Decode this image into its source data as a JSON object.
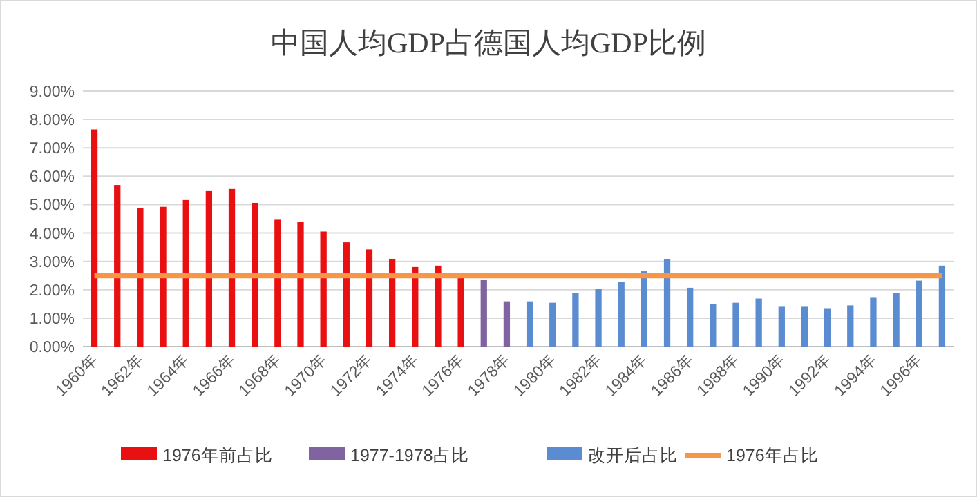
{
  "chart_data": {
    "type": "bar",
    "title": "中国人均GDP占德国人均GDP比例",
    "categories": [
      "1960年",
      null,
      "1962年",
      null,
      "1964年",
      null,
      "1966年",
      null,
      "1968年",
      null,
      "1970年",
      null,
      "1972年",
      null,
      "1974年",
      null,
      "1976年",
      null,
      "1978年",
      null,
      "1980年",
      null,
      "1982年",
      null,
      "1984年",
      null,
      "1986年",
      null,
      "1988年",
      null,
      "1990年",
      null,
      "1992年",
      null,
      "1994年",
      null,
      "1996年",
      null
    ],
    "series": [
      {
        "name": "1976年前占比",
        "color": "#e81010",
        "values": [
          7.65,
          5.69,
          4.87,
          4.92,
          5.16,
          5.5,
          5.55,
          5.06,
          4.49,
          4.39,
          4.05,
          3.67,
          3.42,
          3.09,
          2.8,
          2.85,
          2.45,
          null,
          null,
          null,
          null,
          null,
          null,
          null,
          null,
          null,
          null,
          null,
          null,
          null,
          null,
          null,
          null,
          null,
          null,
          null,
          null,
          null
        ]
      },
      {
        "name": "1977-1978占比",
        "color": "#8064a2",
        "values": [
          null,
          null,
          null,
          null,
          null,
          null,
          null,
          null,
          null,
          null,
          null,
          null,
          null,
          null,
          null,
          null,
          null,
          2.36,
          1.59,
          null,
          null,
          null,
          null,
          null,
          null,
          null,
          null,
          null,
          null,
          null,
          null,
          null,
          null,
          null,
          null,
          null,
          null,
          null
        ]
      },
      {
        "name": "改开后占比",
        "color": "#5b8bd0",
        "values": [
          null,
          null,
          null,
          null,
          null,
          null,
          null,
          null,
          null,
          null,
          null,
          null,
          null,
          null,
          null,
          null,
          null,
          null,
          null,
          1.59,
          1.54,
          1.88,
          2.03,
          2.27,
          2.65,
          3.09,
          2.07,
          1.5,
          1.54,
          1.69,
          1.4,
          1.4,
          1.35,
          1.45,
          1.74,
          1.88,
          2.32,
          2.85
        ]
      },
      {
        "name": "1976年占比",
        "type": "line",
        "color": "#f79646",
        "values": [
          2.5,
          2.5,
          2.5,
          2.5,
          2.5,
          2.5,
          2.5,
          2.5,
          2.5,
          2.5,
          2.5,
          2.5,
          2.5,
          2.5,
          2.5,
          2.5,
          2.5,
          2.5,
          2.5,
          2.5,
          2.5,
          2.5,
          2.5,
          2.5,
          2.5,
          2.5,
          2.5,
          2.5,
          2.5,
          2.5,
          2.5,
          2.5,
          2.5,
          2.5,
          2.5,
          2.5,
          2.5,
          2.5
        ]
      }
    ],
    "ylim": [
      0,
      9
    ],
    "yticks": [
      {
        "value": 0,
        "label": "0.00%"
      },
      {
        "value": 1,
        "label": "1.00%"
      },
      {
        "value": 2,
        "label": "2.00%"
      },
      {
        "value": 3,
        "label": "3.00%"
      },
      {
        "value": 4,
        "label": "4.00%"
      },
      {
        "value": 5,
        "label": "5.00%"
      },
      {
        "value": 6,
        "label": "6.00%"
      },
      {
        "value": 7,
        "label": "7.00%"
      },
      {
        "value": 8,
        "label": "8.00%"
      },
      {
        "value": 9,
        "label": "9.00%"
      }
    ],
    "grid": "y",
    "legend": "bottom"
  }
}
